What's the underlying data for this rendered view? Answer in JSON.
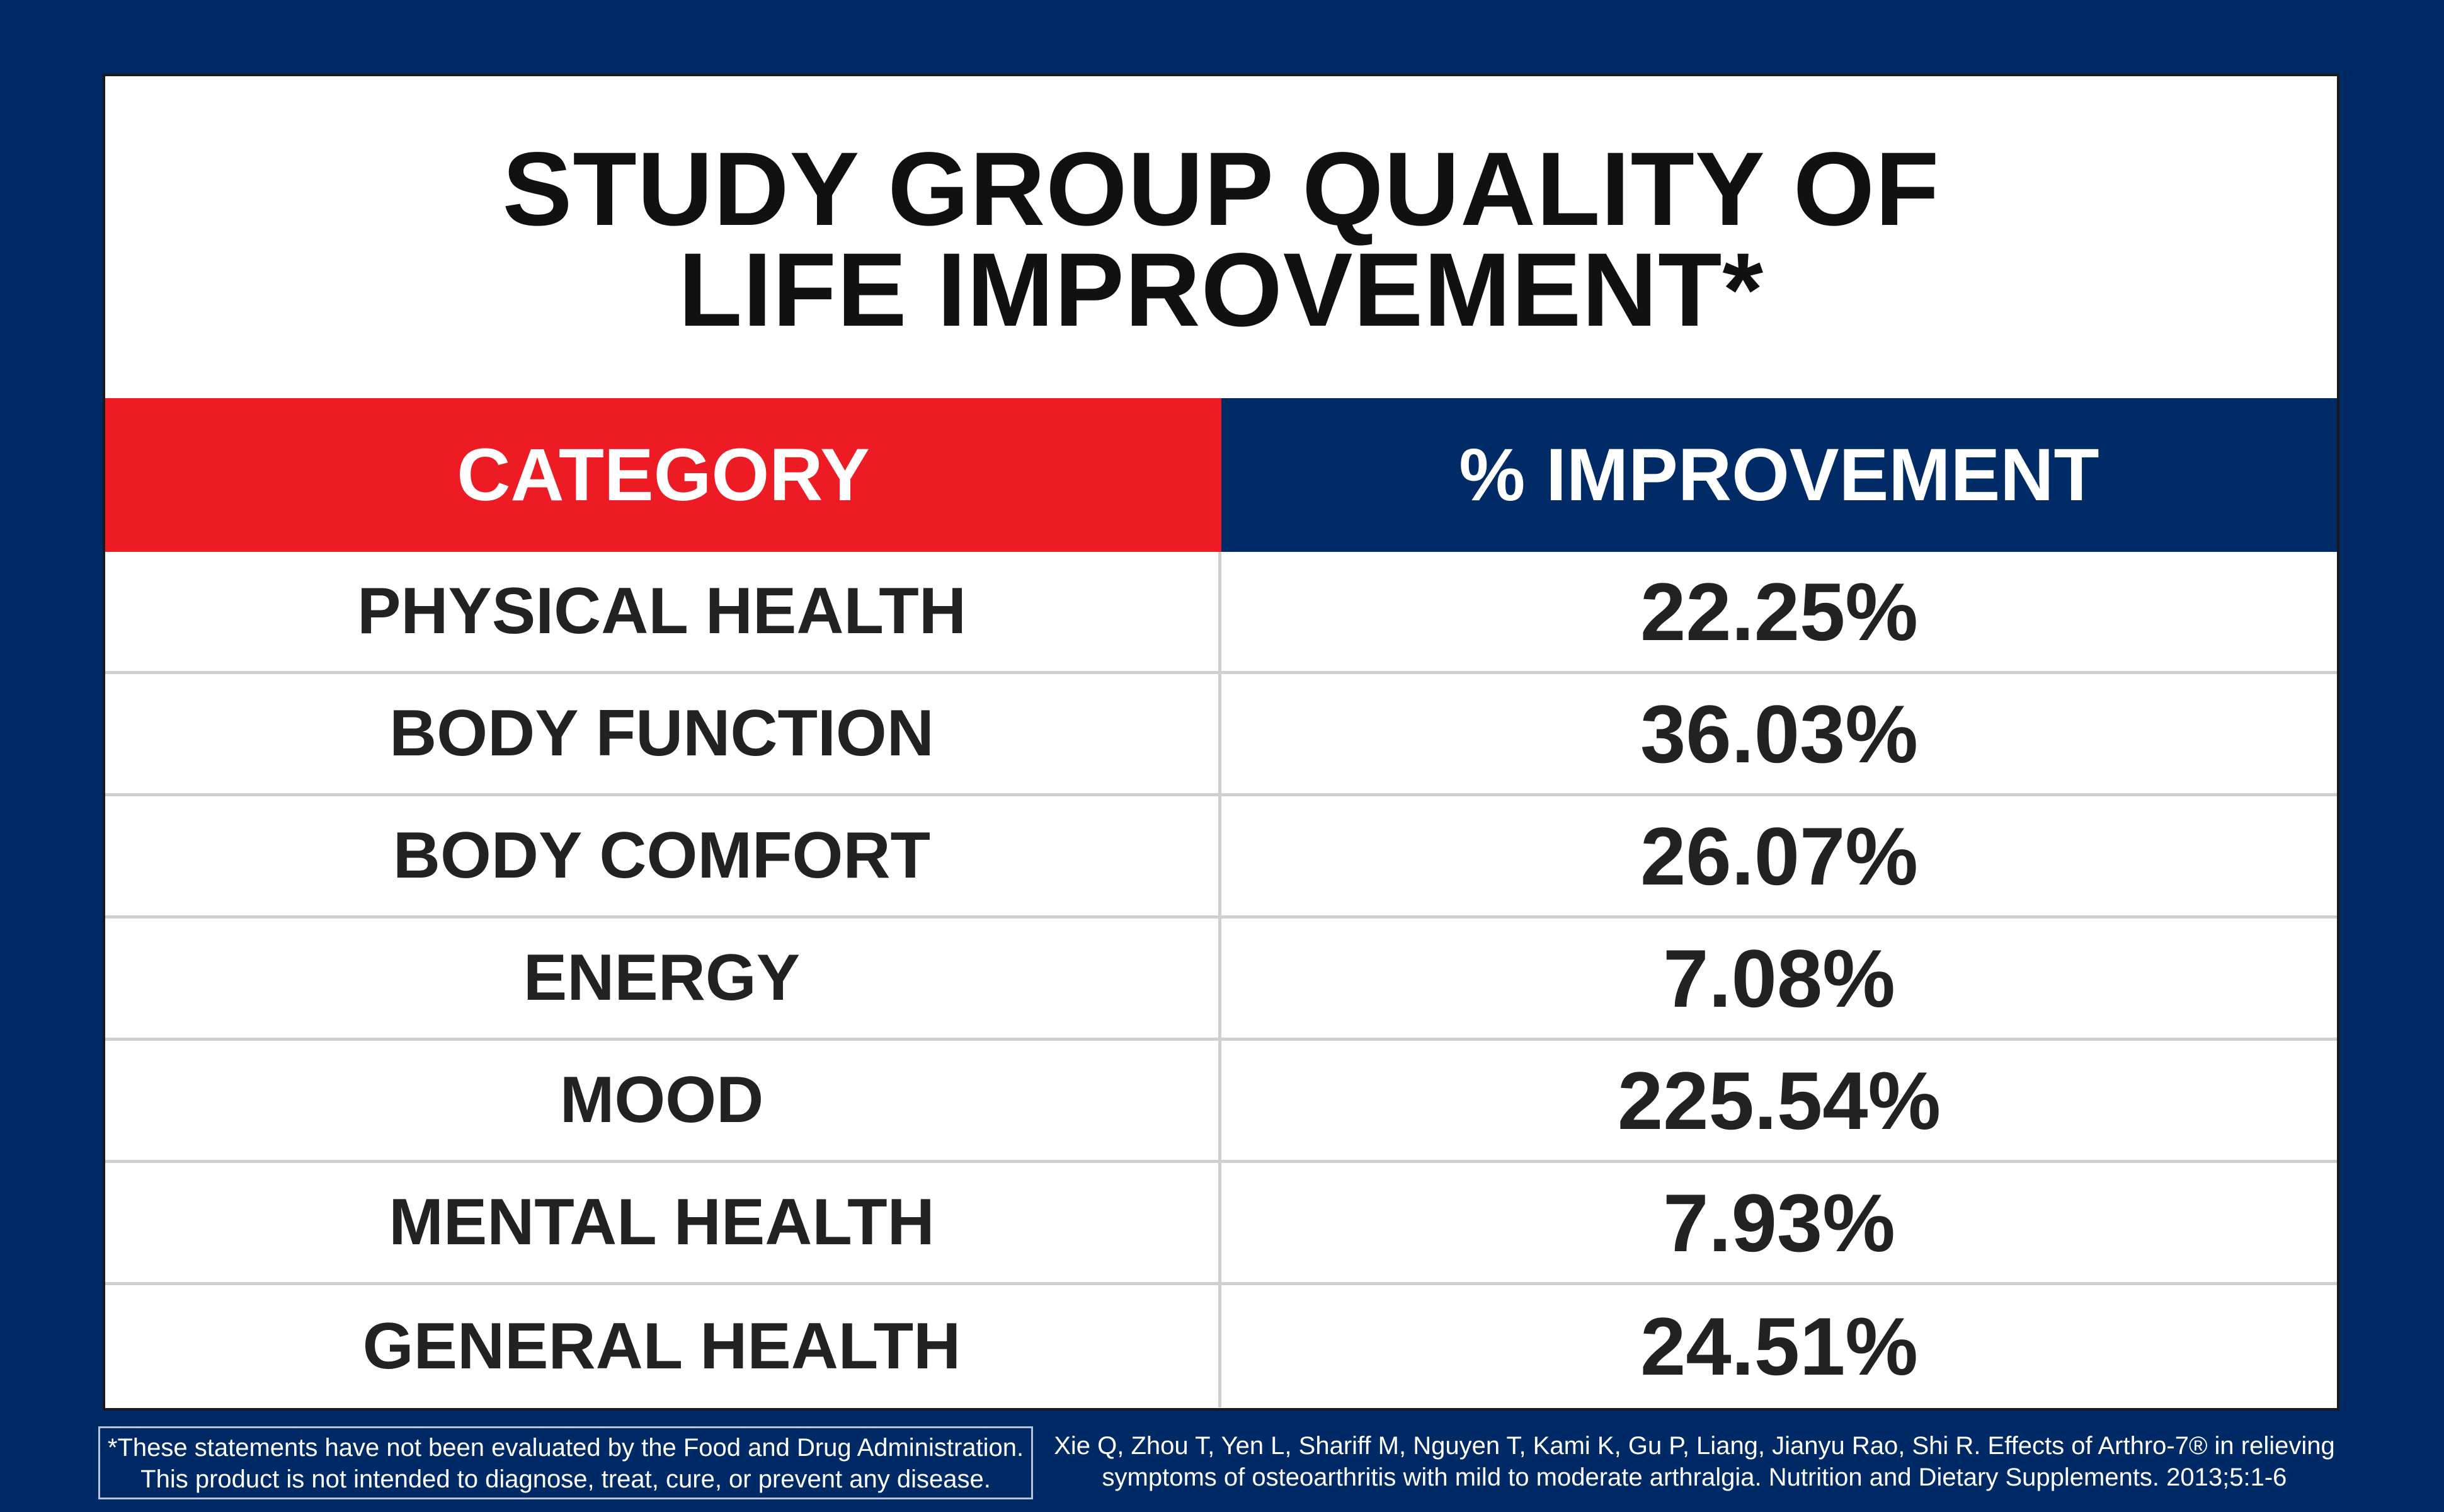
{
  "title": {
    "line1": "STUDY GROUP QUALITY OF",
    "line2": "LIFE IMPROVEMENT*"
  },
  "table": {
    "headers": [
      "CATEGORY",
      "% IMPROVEMENT"
    ],
    "rows": [
      {
        "category": "PHYSICAL HEALTH",
        "value": "22.25%"
      },
      {
        "category": "BODY FUNCTION",
        "value": "36.03%"
      },
      {
        "category": "BODY COMFORT",
        "value": "26.07%"
      },
      {
        "category": "ENERGY",
        "value": "7.08%"
      },
      {
        "category": "MOOD",
        "value": "225.54%"
      },
      {
        "category": "MENTAL HEALTH",
        "value": "7.93%"
      },
      {
        "category": "GENERAL HEALTH",
        "value": "24.51%"
      }
    ]
  },
  "footer": {
    "disclaimer_line1": "*These statements have not been evaluated by the Food and Drug Administration.",
    "disclaimer_line2": "This product is not intended to diagnose, treat, cure, or prevent any disease.",
    "citation_line1": "Xie Q, Zhou T, Yen L, Shariff M, Nguyen T, Kami K, Gu P, Liang, Jianyu Rao, Shi R. Effects of Arthro-7® in relieving",
    "citation_line2": "symptoms of osteoarthritis with mild to moderate arthralgia. Nutrition and Dietary Supplements. 2013;5:1-6"
  },
  "colors": {
    "background": "#002a66",
    "category_header": "#ed1c24",
    "improvement_header": "#002b66"
  }
}
